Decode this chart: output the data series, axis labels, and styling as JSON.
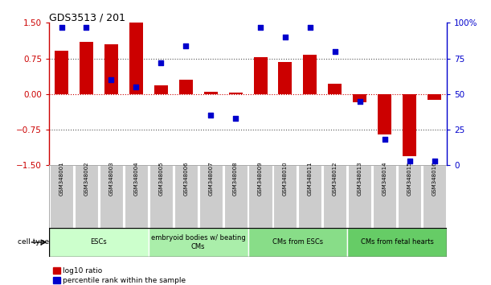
{
  "title": "GDS3513 / 201",
  "samples": [
    "GSM348001",
    "GSM348002",
    "GSM348003",
    "GSM348004",
    "GSM348005",
    "GSM348006",
    "GSM348007",
    "GSM348008",
    "GSM348009",
    "GSM348010",
    "GSM348011",
    "GSM348012",
    "GSM348013",
    "GSM348014",
    "GSM348015",
    "GSM348016"
  ],
  "log10_ratio": [
    0.92,
    1.1,
    1.05,
    1.5,
    0.18,
    0.3,
    0.04,
    0.03,
    0.78,
    0.67,
    0.82,
    0.22,
    -0.18,
    -0.85,
    -1.3,
    -0.12
  ],
  "percentile_rank": [
    97,
    97,
    60,
    55,
    72,
    84,
    35,
    33,
    97,
    90,
    97,
    80,
    45,
    18,
    3,
    3
  ],
  "ylim_left": [
    -1.5,
    1.5
  ],
  "ylim_right": [
    0,
    100
  ],
  "yticks_left": [
    -1.5,
    -0.75,
    0,
    0.75,
    1.5
  ],
  "yticks_right": [
    0,
    25,
    50,
    75,
    100
  ],
  "cell_groups": [
    {
      "label": "ESCs",
      "start": 0,
      "end": 3
    },
    {
      "label": "embryoid bodies w/ beating\nCMs",
      "start": 4,
      "end": 7
    },
    {
      "label": "CMs from ESCs",
      "start": 8,
      "end": 11
    },
    {
      "label": "CMs from fetal hearts",
      "start": 12,
      "end": 15
    }
  ],
  "cell_colors": [
    "#ccffcc",
    "#aaeeaa",
    "#88dd88",
    "#66cc66"
  ],
  "bar_color": "#cc0000",
  "scatter_color": "#0000cc",
  "bar_width": 0.55,
  "hline_color": "#cc0000",
  "dotted_color": "#555555",
  "background_color": "#ffffff",
  "sample_box_color": "#cccccc",
  "cell_type_label": "cell type"
}
